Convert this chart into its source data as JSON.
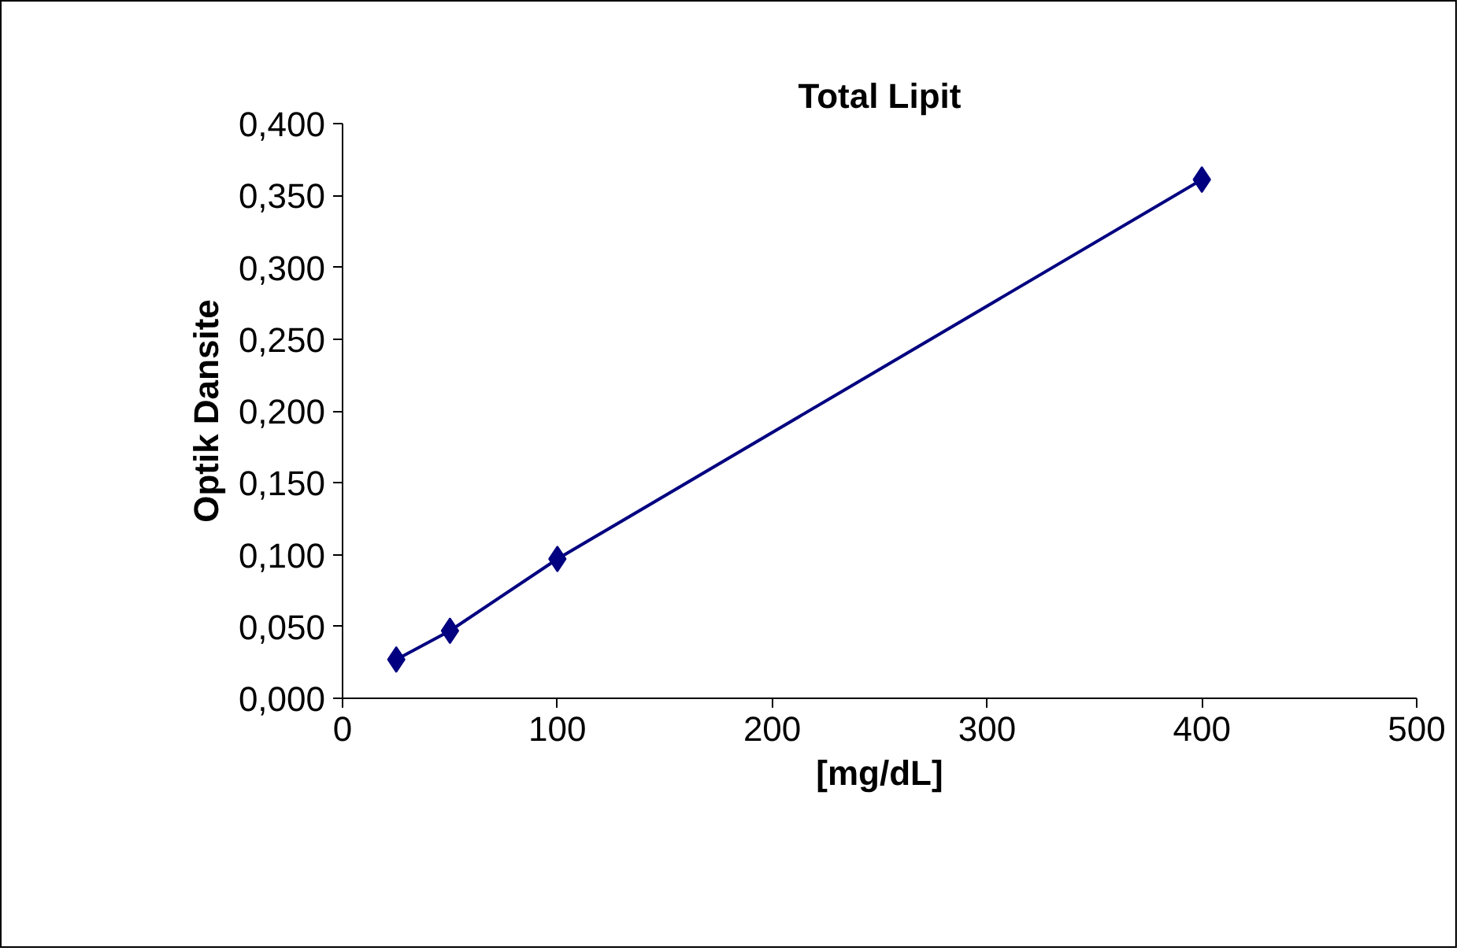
{
  "chart_data": {
    "type": "line",
    "title": "Total Lipit",
    "xlabel": "[mg/dL]",
    "ylabel": "Optik Dansite",
    "x": [
      25,
      50,
      100,
      400
    ],
    "series": [
      {
        "color": "#000080",
        "values": [
          0.027,
          0.047,
          0.097,
          0.361
        ]
      }
    ],
    "xlim": [
      0,
      500
    ],
    "xticks": [
      0,
      100,
      200,
      300,
      400,
      500
    ],
    "ylim": [
      0,
      0.4
    ],
    "yticks": [
      {
        "value": 0,
        "label": "0,000"
      },
      {
        "value": 0.05,
        "label": "0,050"
      },
      {
        "value": 0.1,
        "label": "0,100"
      },
      {
        "value": 0.15,
        "label": "0,150"
      },
      {
        "value": 0.2,
        "label": "0,200"
      },
      {
        "value": 0.25,
        "label": "0,250"
      },
      {
        "value": 0.3,
        "label": "0,300"
      },
      {
        "value": 0.35,
        "label": "0,350"
      },
      {
        "value": 0.4,
        "label": "0,400"
      }
    ],
    "grid": false,
    "marker": "diamond",
    "line_style": "solid"
  }
}
